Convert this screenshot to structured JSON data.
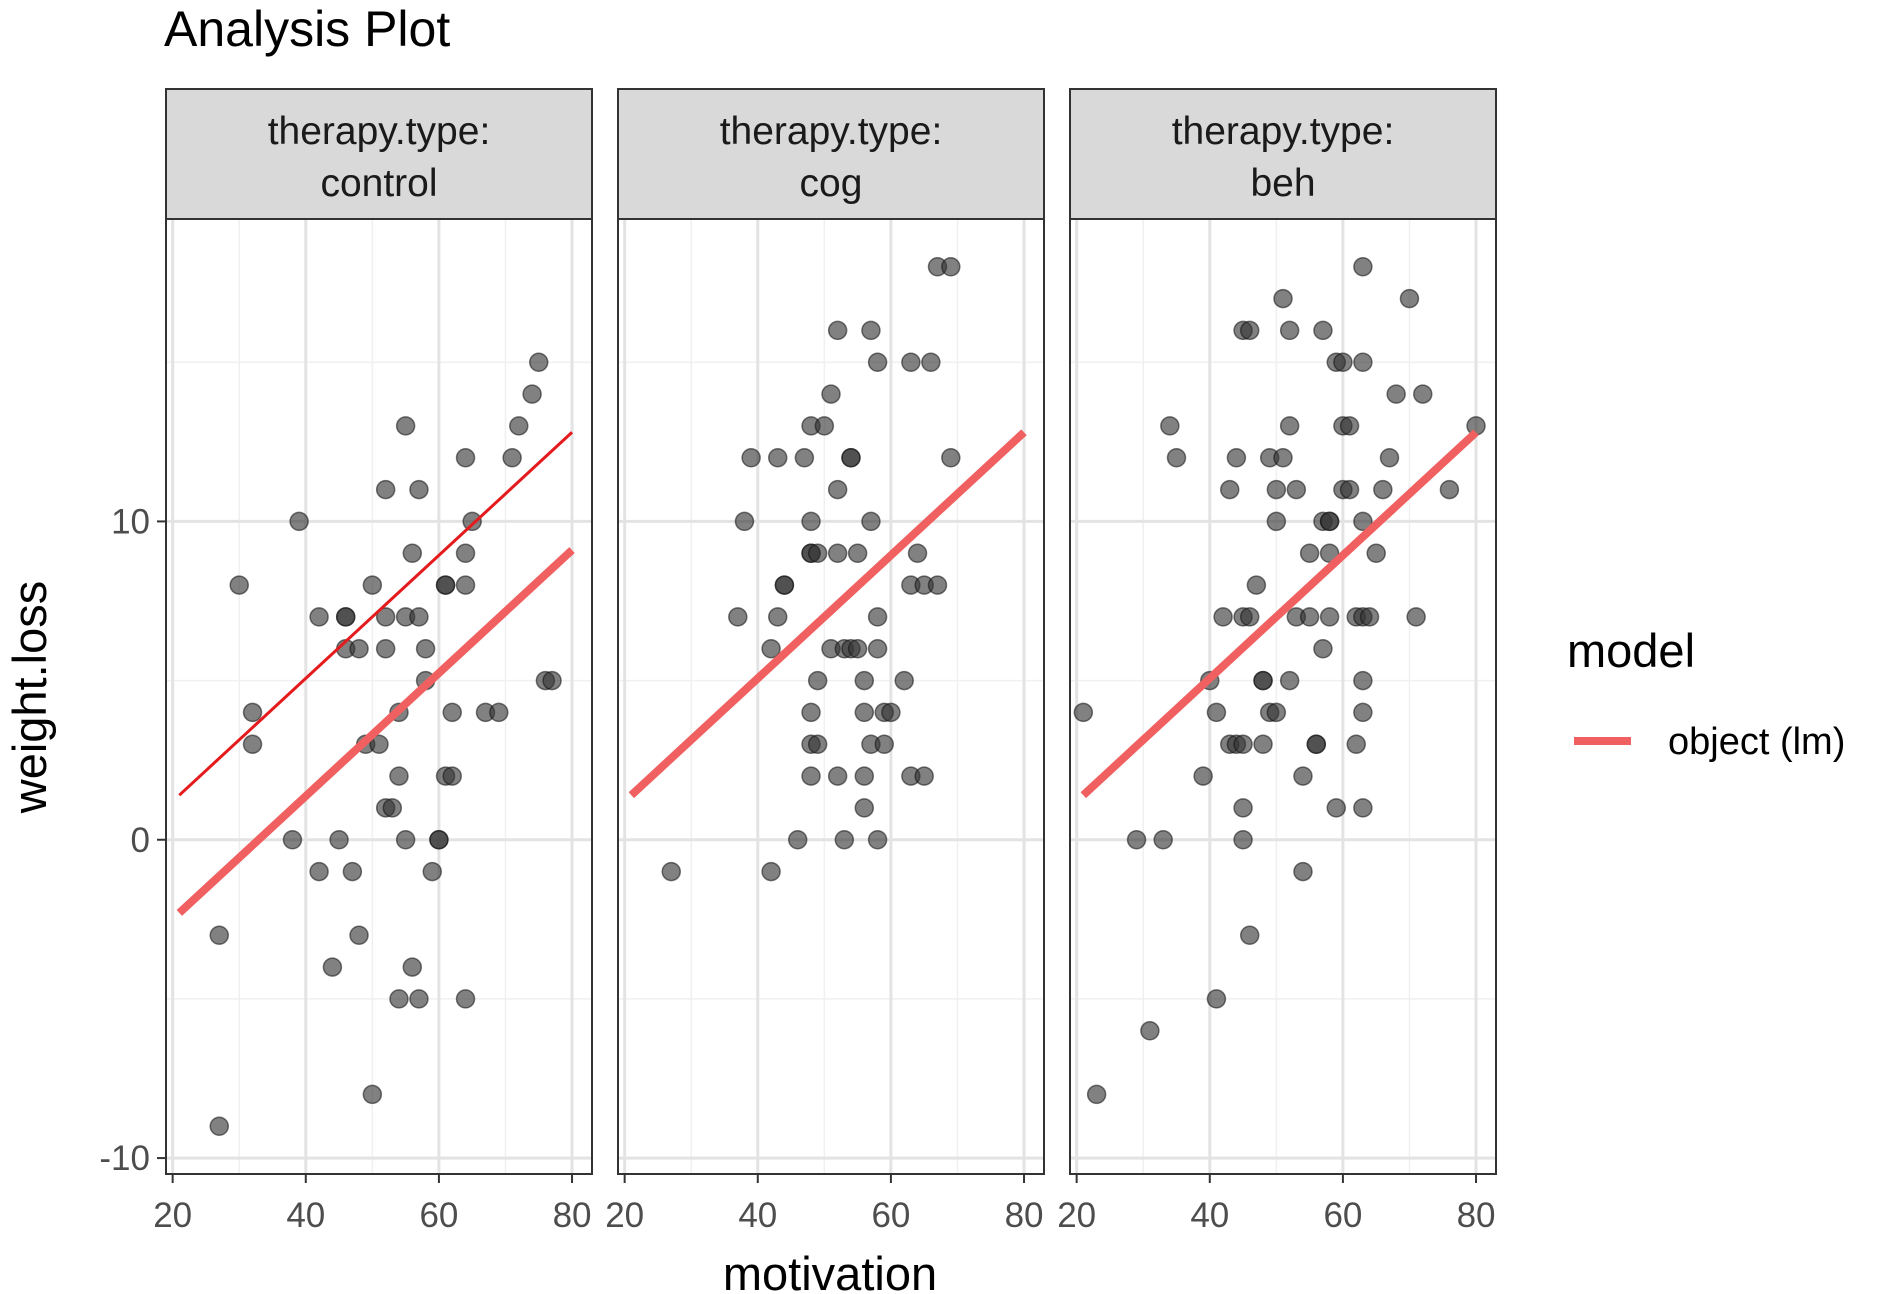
{
  "chart_data": {
    "type": "scatter",
    "title": "Analysis Plot",
    "xlabel": "motivation",
    "ylabel": "weight.loss",
    "xlim": [
      19,
      83
    ],
    "ylim": [
      -10.5,
      19.5
    ],
    "x_ticks": [
      20,
      40,
      60,
      80
    ],
    "x_tick_labels": [
      "20",
      "40",
      "60",
      "80"
    ],
    "y_ticks": [
      -10,
      0,
      10
    ],
    "y_tick_labels": [
      "-10",
      "0",
      "10"
    ],
    "grid": true,
    "facet_label_prefix": "therapy.type:",
    "legend": {
      "title": "model",
      "position": "right",
      "entries": [
        {
          "label": "object (lm)",
          "color": "#F06060"
        }
      ]
    },
    "point_color": "#333333",
    "model_line_color": "#F06060",
    "reference_line_color": "#E41A1C",
    "facets": [
      {
        "name": "control",
        "points": [
          [
            27,
            -9
          ],
          [
            27,
            -3
          ],
          [
            30,
            8
          ],
          [
            32,
            4
          ],
          [
            32,
            3
          ],
          [
            38,
            0
          ],
          [
            39,
            10
          ],
          [
            42,
            -1
          ],
          [
            42,
            7
          ],
          [
            44,
            -4
          ],
          [
            45,
            0
          ],
          [
            46,
            7
          ],
          [
            46,
            7
          ],
          [
            46,
            6
          ],
          [
            47,
            -1
          ],
          [
            48,
            6
          ],
          [
            48,
            -3
          ],
          [
            49,
            3
          ],
          [
            50,
            8
          ],
          [
            50,
            -8
          ],
          [
            51,
            3
          ],
          [
            52,
            11
          ],
          [
            52,
            7
          ],
          [
            52,
            6
          ],
          [
            52,
            1
          ],
          [
            53,
            1
          ],
          [
            54,
            4
          ],
          [
            54,
            2
          ],
          [
            54,
            -5
          ],
          [
            55,
            7
          ],
          [
            55,
            13
          ],
          [
            55,
            0
          ],
          [
            56,
            9
          ],
          [
            56,
            -4
          ],
          [
            57,
            11
          ],
          [
            57,
            -5
          ],
          [
            57,
            7
          ],
          [
            58,
            6
          ],
          [
            58,
            5
          ],
          [
            59,
            -1
          ],
          [
            60,
            0
          ],
          [
            60,
            0
          ],
          [
            61,
            8
          ],
          [
            61,
            8
          ],
          [
            61,
            2
          ],
          [
            62,
            2
          ],
          [
            62,
            4
          ],
          [
            64,
            12
          ],
          [
            64,
            9
          ],
          [
            64,
            8
          ],
          [
            64,
            -5
          ],
          [
            65,
            10
          ],
          [
            67,
            4
          ],
          [
            69,
            4
          ],
          [
            71,
            12
          ],
          [
            72,
            13
          ],
          [
            74,
            14
          ],
          [
            75,
            15
          ],
          [
            76,
            5
          ],
          [
            77,
            5
          ]
        ],
        "model_line": [
          [
            21,
            -2.3
          ],
          [
            80,
            9.1
          ]
        ],
        "reference_line": [
          [
            21,
            1.4
          ],
          [
            80,
            12.8
          ]
        ]
      },
      {
        "name": "cog",
        "points": [
          [
            27,
            -1
          ],
          [
            37,
            7
          ],
          [
            38,
            10
          ],
          [
            39,
            12
          ],
          [
            42,
            -1
          ],
          [
            42,
            6
          ],
          [
            43,
            12
          ],
          [
            43,
            7
          ],
          [
            44,
            8
          ],
          [
            44,
            8
          ],
          [
            46,
            0
          ],
          [
            47,
            12
          ],
          [
            48,
            13
          ],
          [
            48,
            9
          ],
          [
            48,
            9
          ],
          [
            48,
            10
          ],
          [
            48,
            4
          ],
          [
            48,
            3
          ],
          [
            48,
            2
          ],
          [
            49,
            9
          ],
          [
            49,
            3
          ],
          [
            49,
            5
          ],
          [
            50,
            13
          ],
          [
            51,
            14
          ],
          [
            51,
            6
          ],
          [
            52,
            16
          ],
          [
            52,
            11
          ],
          [
            52,
            9
          ],
          [
            52,
            2
          ],
          [
            53,
            6
          ],
          [
            53,
            0
          ],
          [
            54,
            12
          ],
          [
            54,
            12
          ],
          [
            54,
            6
          ],
          [
            55,
            9
          ],
          [
            55,
            6
          ],
          [
            56,
            5
          ],
          [
            56,
            4
          ],
          [
            56,
            2
          ],
          [
            56,
            1
          ],
          [
            57,
            16
          ],
          [
            57,
            10
          ],
          [
            57,
            3
          ],
          [
            58,
            15
          ],
          [
            58,
            7
          ],
          [
            58,
            6
          ],
          [
            58,
            0
          ],
          [
            59,
            4
          ],
          [
            59,
            3
          ],
          [
            60,
            4
          ],
          [
            62,
            5
          ],
          [
            63,
            15
          ],
          [
            63,
            8
          ],
          [
            63,
            2
          ],
          [
            64,
            9
          ],
          [
            65,
            8
          ],
          [
            65,
            2
          ],
          [
            66,
            15
          ],
          [
            67,
            18
          ],
          [
            67,
            8
          ],
          [
            69,
            18
          ],
          [
            69,
            12
          ]
        ],
        "model_line": [
          [
            21,
            1.4
          ],
          [
            80,
            12.8
          ]
        ]
      },
      {
        "name": "beh",
        "points": [
          [
            21,
            4
          ],
          [
            23,
            -8
          ],
          [
            29,
            0
          ],
          [
            31,
            -6
          ],
          [
            33,
            0
          ],
          [
            34,
            13
          ],
          [
            35,
            12
          ],
          [
            39,
            2
          ],
          [
            40,
            5
          ],
          [
            41,
            -5
          ],
          [
            41,
            4
          ],
          [
            42,
            7
          ],
          [
            43,
            11
          ],
          [
            43,
            3
          ],
          [
            44,
            12
          ],
          [
            44,
            3
          ],
          [
            45,
            16
          ],
          [
            45,
            7
          ],
          [
            45,
            3
          ],
          [
            45,
            1
          ],
          [
            45,
            0
          ],
          [
            46,
            16
          ],
          [
            46,
            7
          ],
          [
            46,
            -3
          ],
          [
            47,
            8
          ],
          [
            48,
            5
          ],
          [
            48,
            5
          ],
          [
            48,
            3
          ],
          [
            49,
            12
          ],
          [
            49,
            4
          ],
          [
            50,
            11
          ],
          [
            50,
            10
          ],
          [
            50,
            4
          ],
          [
            51,
            17
          ],
          [
            51,
            12
          ],
          [
            52,
            16
          ],
          [
            52,
            13
          ],
          [
            52,
            5
          ],
          [
            53,
            11
          ],
          [
            53,
            7
          ],
          [
            54,
            2
          ],
          [
            54,
            -1
          ],
          [
            55,
            9
          ],
          [
            55,
            7
          ],
          [
            56,
            3
          ],
          [
            56,
            3
          ],
          [
            57,
            16
          ],
          [
            57,
            10
          ],
          [
            57,
            6
          ],
          [
            58,
            10
          ],
          [
            58,
            10
          ],
          [
            58,
            9
          ],
          [
            58,
            7
          ],
          [
            59,
            15
          ],
          [
            59,
            1
          ],
          [
            60,
            15
          ],
          [
            60,
            13
          ],
          [
            60,
            11
          ],
          [
            61,
            13
          ],
          [
            61,
            11
          ],
          [
            62,
            7
          ],
          [
            62,
            3
          ],
          [
            63,
            18
          ],
          [
            63,
            15
          ],
          [
            63,
            10
          ],
          [
            63,
            7
          ],
          [
            63,
            5
          ],
          [
            63,
            4
          ],
          [
            63,
            1
          ],
          [
            64,
            7
          ],
          [
            65,
            9
          ],
          [
            66,
            11
          ],
          [
            67,
            12
          ],
          [
            68,
            14
          ],
          [
            70,
            17
          ],
          [
            71,
            7
          ],
          [
            72,
            14
          ],
          [
            76,
            11
          ],
          [
            80,
            13
          ]
        ],
        "model_line": [
          [
            21,
            1.4
          ],
          [
            80,
            12.8
          ]
        ]
      }
    ]
  }
}
